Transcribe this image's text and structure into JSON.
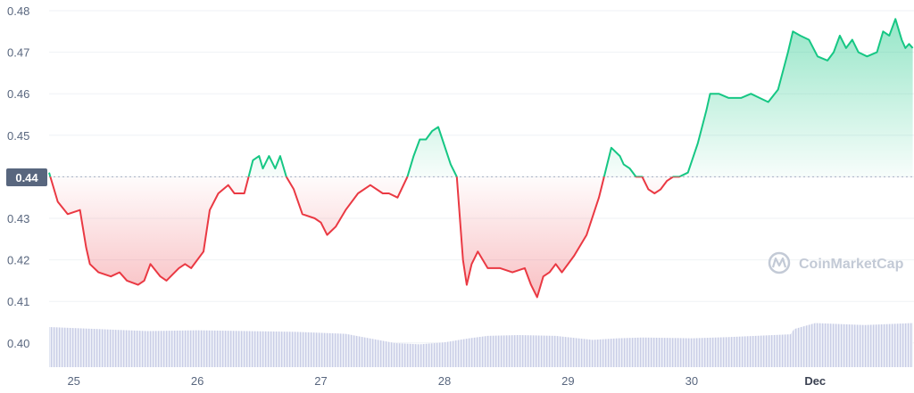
{
  "watermark": {
    "text": "CoinMarketCap",
    "icon": "coinmarketcap-logo-icon"
  },
  "colors": {
    "up": "#16c784",
    "down": "#ea3943",
    "grid": "#eff2f5",
    "volume": "#c9cde6",
    "reference": "#a6b0c3",
    "badge": "#58667e"
  },
  "chart_data": {
    "type": "line",
    "title": "",
    "xlabel": "",
    "ylabel": "",
    "ylim": [
      0.395,
      0.48
    ],
    "y_ticks": [
      0.4,
      0.41,
      0.42,
      0.43,
      0.44,
      0.45,
      0.46,
      0.47,
      0.48
    ],
    "y_tick_labels": [
      "0.40",
      "0.41",
      "0.42",
      "0.43",
      "0.44",
      "0.45",
      "0.46",
      "0.47",
      "0.48"
    ],
    "x_range": [
      24.8,
      31.8
    ],
    "x_ticks": [
      25,
      26,
      27,
      28,
      29,
      30,
      31
    ],
    "x_tick_labels": [
      "25",
      "26",
      "27",
      "28",
      "29",
      "30",
      "Dec"
    ],
    "reference_value": 0.44,
    "reference_label": "0.44",
    "grid": true,
    "series": [
      {
        "x": [
          24.8,
          24.87,
          24.95,
          25.05,
          25.1,
          25.13,
          25.2,
          25.3,
          25.37,
          25.43,
          25.52,
          25.57,
          25.62,
          25.7,
          25.75,
          25.85,
          25.9,
          25.95,
          26.05,
          26.1,
          26.17,
          26.25,
          26.3,
          26.38,
          26.45,
          26.5,
          26.53,
          26.58,
          26.63,
          26.67,
          26.72,
          26.78,
          26.85,
          26.95,
          27.0,
          27.05,
          27.12,
          27.2,
          27.3,
          27.4,
          27.5,
          27.55,
          27.62,
          27.7,
          27.75,
          27.8,
          27.85,
          27.9,
          27.95,
          28.05,
          28.1,
          28.15,
          28.18,
          28.22,
          28.27,
          28.35,
          28.45,
          28.55,
          28.65,
          28.7,
          28.75,
          28.8,
          28.85,
          28.9,
          28.95,
          29.05,
          29.15,
          29.25,
          29.35,
          29.42,
          29.45,
          29.5,
          29.55,
          29.6,
          29.65,
          29.7,
          29.75,
          29.8,
          29.85,
          29.9,
          29.97,
          30.05,
          30.12,
          30.15,
          30.18,
          30.22,
          30.3,
          30.4,
          30.48,
          30.55,
          30.62,
          30.7,
          30.78,
          30.82,
          30.88,
          30.95,
          31.02,
          31.1,
          31.15,
          31.2,
          31.25,
          31.3,
          31.35,
          31.42,
          31.5,
          31.55,
          31.6,
          31.65,
          31.7,
          31.73,
          31.76,
          31.79
        ],
        "values": [
          0.441,
          0.434,
          0.431,
          0.432,
          0.423,
          0.419,
          0.417,
          0.416,
          0.417,
          0.415,
          0.414,
          0.415,
          0.419,
          0.416,
          0.415,
          0.418,
          0.419,
          0.418,
          0.422,
          0.432,
          0.436,
          0.438,
          0.436,
          0.436,
          0.444,
          0.445,
          0.442,
          0.445,
          0.442,
          0.445,
          0.44,
          0.437,
          0.431,
          0.43,
          0.429,
          0.426,
          0.428,
          0.432,
          0.436,
          0.438,
          0.436,
          0.436,
          0.435,
          0.44,
          0.445,
          0.449,
          0.449,
          0.451,
          0.452,
          0.443,
          0.44,
          0.42,
          0.414,
          0.419,
          0.422,
          0.418,
          0.418,
          0.417,
          0.418,
          0.414,
          0.411,
          0.416,
          0.417,
          0.419,
          0.417,
          0.421,
          0.426,
          0.435,
          0.447,
          0.445,
          0.443,
          0.442,
          0.44,
          0.44,
          0.437,
          0.436,
          0.437,
          0.439,
          0.44,
          0.44,
          0.441,
          0.448,
          0.456,
          0.46,
          0.46,
          0.46,
          0.459,
          0.459,
          0.46,
          0.459,
          0.458,
          0.461,
          0.47,
          0.475,
          0.474,
          0.473,
          0.469,
          0.468,
          0.47,
          0.474,
          0.471,
          0.473,
          0.47,
          0.469,
          0.47,
          0.475,
          0.474,
          0.478,
          0.473,
          0.471,
          0.472,
          0.471
        ]
      }
    ],
    "volume": {
      "x": [
        24.8,
        25.2,
        25.6,
        26.0,
        26.4,
        26.8,
        27.2,
        27.6,
        27.8,
        28.0,
        28.2,
        28.35,
        28.6,
        28.9,
        29.2,
        29.4,
        29.6,
        30.0,
        30.3,
        30.8,
        30.83,
        31.0,
        31.4,
        31.79
      ],
      "values": [
        1.0,
        0.95,
        0.9,
        0.92,
        0.9,
        0.88,
        0.83,
        0.6,
        0.57,
        0.62,
        0.72,
        0.78,
        0.8,
        0.78,
        0.68,
        0.72,
        0.74,
        0.72,
        0.75,
        0.82,
        0.95,
        1.1,
        1.05,
        1.1
      ]
    }
  }
}
